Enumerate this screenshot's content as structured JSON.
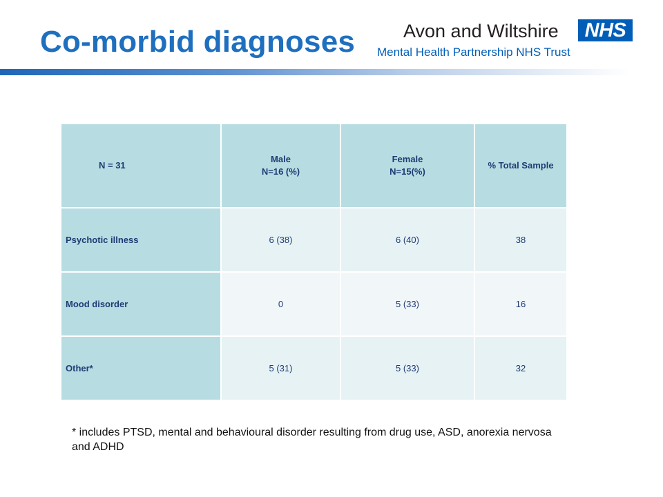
{
  "slide": {
    "title": "Co-morbid diagnoses",
    "logo": {
      "line1": "Avon and Wiltshire",
      "badge": "NHS",
      "line2": "Mental Health Partnership NHS Trust",
      "badge_color": "#005eb8"
    },
    "accent_color": "#1f6fbf"
  },
  "table": {
    "header": {
      "corner": "N = 31",
      "male_line1": "Male",
      "male_line2": "N=16 (%)",
      "female_line1": "Female",
      "female_line2": "N=15(%)",
      "total": "% Total Sample"
    },
    "rows": [
      {
        "label": "Psychotic illness",
        "male": "6 (38)",
        "female": "6 (40)",
        "total": "38"
      },
      {
        "label": "Mood disorder",
        "male": "0",
        "female": "5 (33)",
        "total": "16"
      },
      {
        "label": "Other*",
        "male": "5 (31)",
        "female": "5 (33)",
        "total": "32"
      }
    ]
  },
  "footnote": "* includes PTSD, mental and behavioural disorder resulting from drug use, ASD, anorexia nervosa and  ADHD"
}
